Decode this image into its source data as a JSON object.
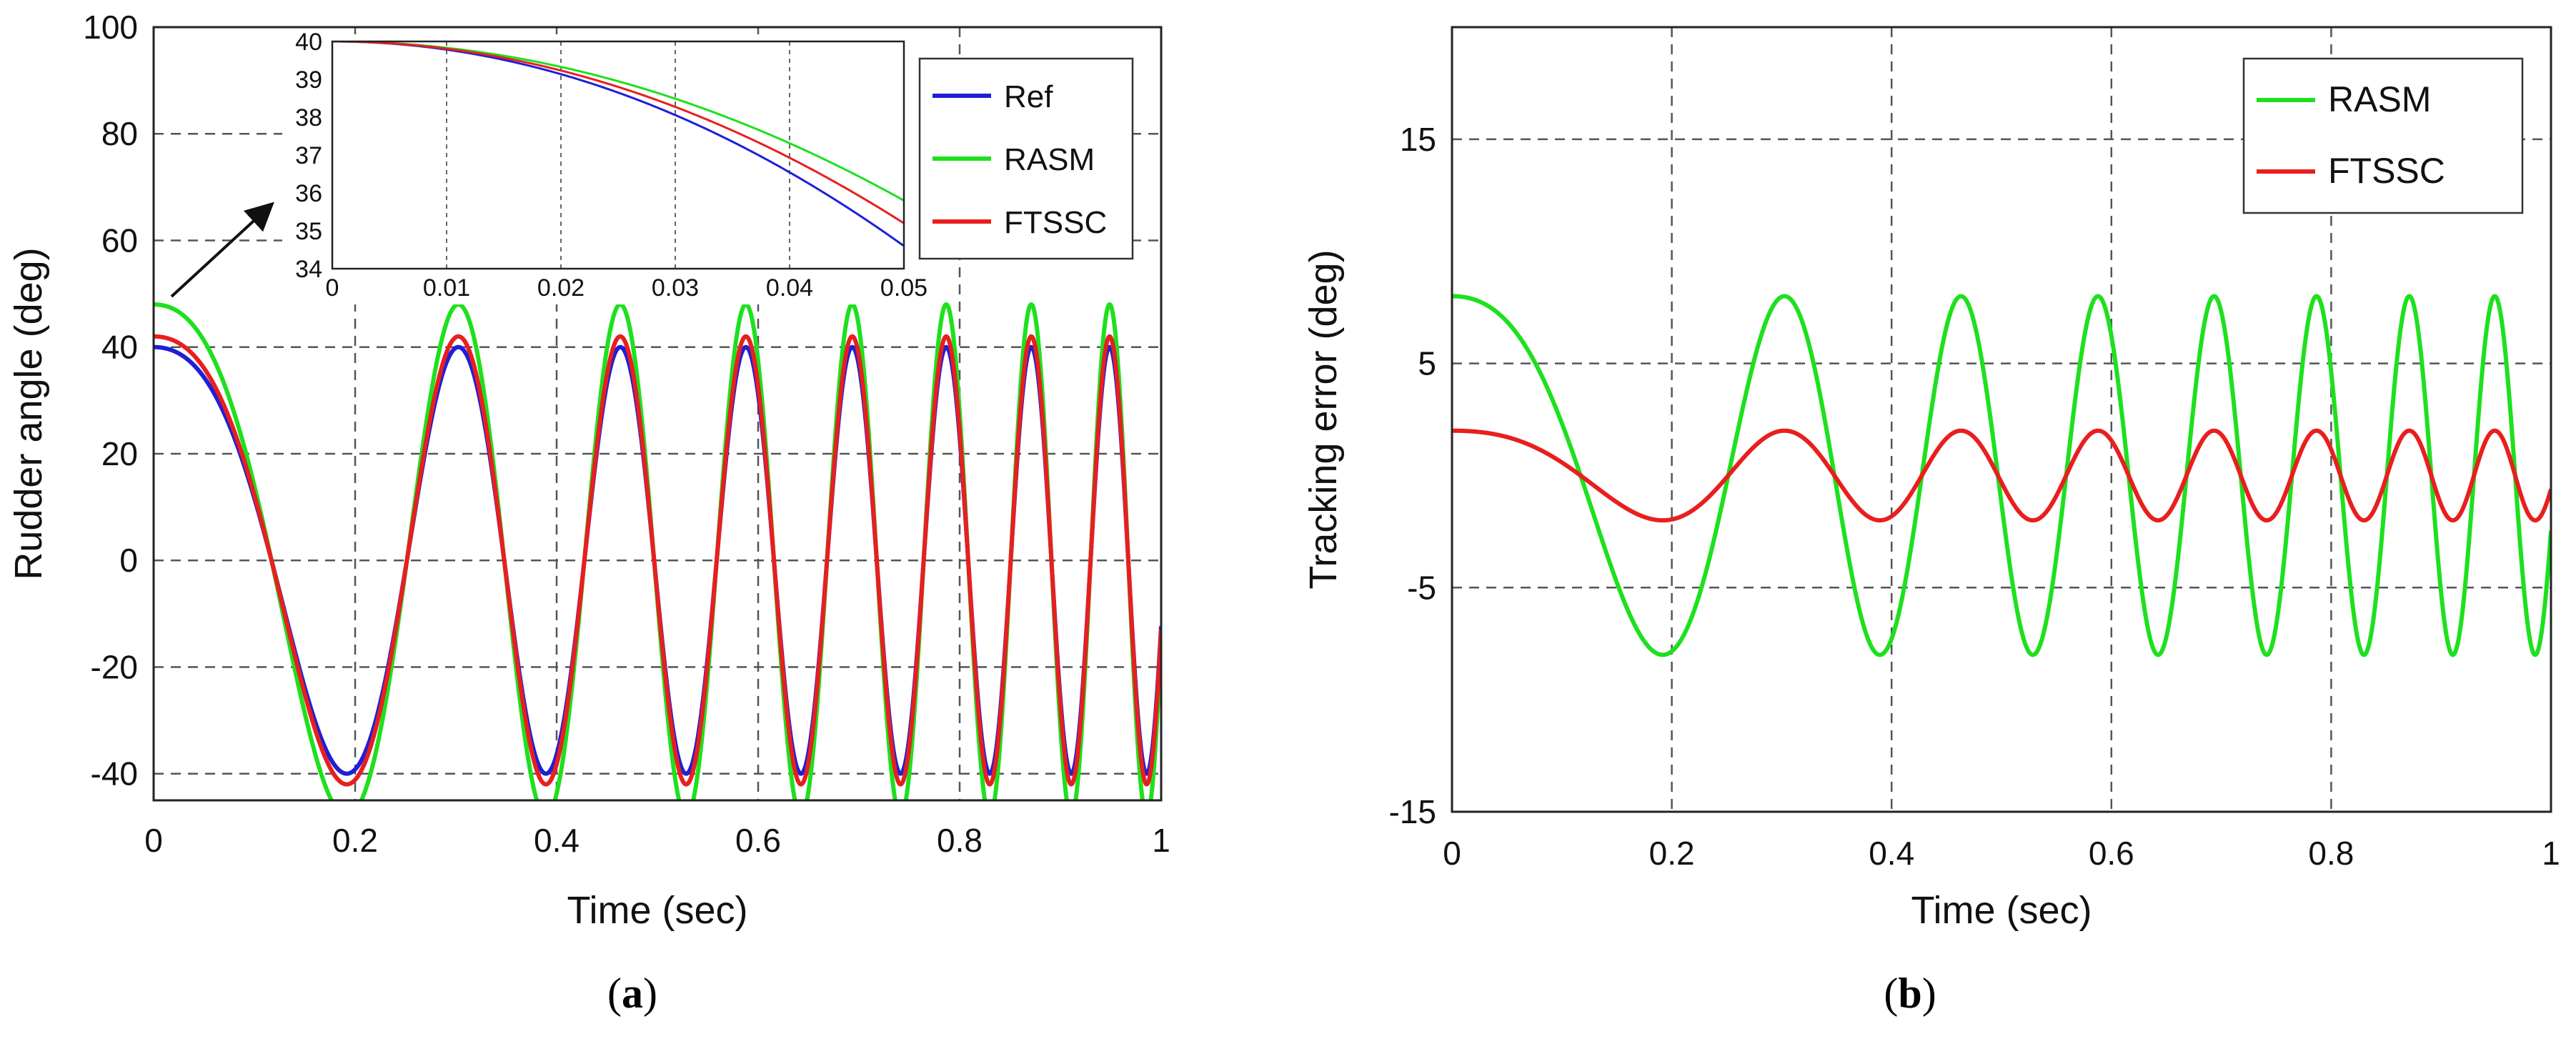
{
  "figure": {
    "captions": [
      "(",
      "a",
      ")",
      "(",
      "b",
      ")"
    ]
  },
  "chart_data": [
    {
      "id": "a",
      "type": "line",
      "caption": "(a)",
      "title": "",
      "xlabel": "Time (sec)",
      "ylabel": "Rudder angle (deg)",
      "xlim": [
        0,
        1
      ],
      "ylim": [
        -45,
        100
      ],
      "xticks": [
        0,
        0.2,
        0.4,
        0.6,
        0.8,
        1
      ],
      "xtick_labels": [
        "0",
        "0.2",
        "0.4",
        "0.6",
        "0.8",
        "1"
      ],
      "yticks": [
        -40,
        -20,
        0,
        20,
        40,
        60,
        80,
        100
      ],
      "ytick_labels": [
        "-40",
        "-20",
        "0",
        "20",
        "40",
        "60",
        "80",
        "100"
      ],
      "grid": true,
      "legend_position": "top-right",
      "signal": "chirp: amplitude * cos(2*pi*(1.4*t + 6.3*t^2)), t from 0 to 1 s",
      "series": [
        {
          "name": "Ref",
          "color": "#1f1fd6",
          "amplitude": 40
        },
        {
          "name": "RASM",
          "color": "#1ee01e",
          "amplitude": 48
        },
        {
          "name": "FTSSC",
          "color": "#e81f1f",
          "amplitude": 42
        }
      ],
      "inset": {
        "xlim": [
          0,
          0.05
        ],
        "ylim": [
          34,
          40
        ],
        "xticks": [
          0,
          0.01,
          0.02,
          0.03,
          0.04,
          0.05
        ],
        "xtick_labels": [
          "0",
          "0.01",
          "0.02",
          "0.03",
          "0.04",
          "0.05"
        ],
        "yticks": [
          34,
          35,
          36,
          37,
          38,
          39,
          40
        ],
        "ytick_labels": [
          "34",
          "35",
          "36",
          "37",
          "38",
          "39",
          "40"
        ],
        "series": [
          {
            "name": "Ref",
            "end_value": 34.6
          },
          {
            "name": "RASM",
            "end_value": 35.8
          },
          {
            "name": "FTSSC",
            "end_value": 35.2
          }
        ]
      }
    },
    {
      "id": "b",
      "type": "line",
      "caption": "(b)",
      "title": "",
      "xlabel": "Time (sec)",
      "ylabel": "Tracking error (deg)",
      "xlim": [
        0,
        1
      ],
      "ylim": [
        -15,
        20
      ],
      "xticks": [
        0,
        0.2,
        0.4,
        0.6,
        0.8,
        1
      ],
      "xtick_labels": [
        "0",
        "0.2",
        "0.4",
        "0.6",
        "0.8",
        "1"
      ],
      "yticks": [
        -15,
        -5,
        5,
        15
      ],
      "ytick_labels": [
        "-15",
        "-5",
        "5",
        "15"
      ],
      "grid": true,
      "legend_position": "top-right",
      "signal": "chirp error: amplitude * cos(2*pi*(1.4*t + 6.3*t^2)), t from 0 to 1 s",
      "series": [
        {
          "name": "RASM",
          "color": "#1ee01e",
          "amplitude": 8
        },
        {
          "name": "FTSSC",
          "color": "#e81f1f",
          "amplitude": 2
        }
      ]
    }
  ]
}
